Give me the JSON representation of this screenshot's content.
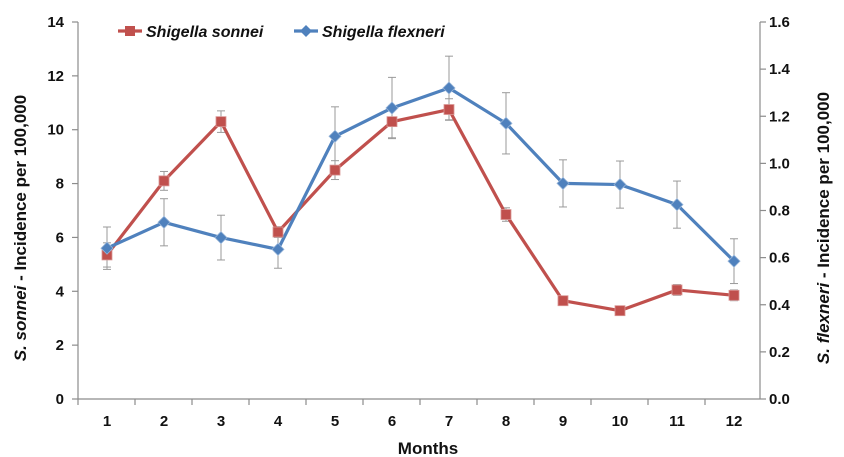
{
  "chart_data": {
    "type": "line",
    "xlabel": "Months",
    "ylabel_left_italic": "S. sonnei",
    "ylabel_left_rest": " - Incidence per 100,000",
    "ylabel_right_italic": "S. flexneri",
    "ylabel_right_rest": " - Incidence per 100,000",
    "x": [
      "1",
      "2",
      "3",
      "4",
      "5",
      "6",
      "7",
      "8",
      "9",
      "10",
      "11",
      "12"
    ],
    "ylim_left": [
      0,
      14
    ],
    "yticks_left": [
      "0",
      "2",
      "4",
      "6",
      "8",
      "10",
      "12",
      "14"
    ],
    "ylim_right": [
      0,
      1.6
    ],
    "yticks_right": [
      "0.0",
      "0.2",
      "0.4",
      "0.6",
      "0.8",
      "1.0",
      "1.2",
      "1.4",
      "1.6"
    ],
    "legend_position": "top-left",
    "grid": false,
    "series": [
      {
        "name": "Shigella sonnei",
        "axis": "left",
        "color": "#c0504d",
        "marker": "square",
        "values": [
          5.35,
          8.1,
          10.3,
          6.2,
          8.5,
          10.3,
          10.75,
          6.85,
          3.65,
          3.28,
          4.05,
          3.85
        ],
        "error": [
          0.45,
          0.35,
          0.4,
          0.2,
          0.35,
          0.6,
          0.4,
          0.25,
          0.15,
          0.15,
          0.2,
          0.2
        ]
      },
      {
        "name": "Shigella flexneri",
        "axis": "right",
        "color": "#4f81bd",
        "marker": "diamond",
        "values": [
          0.64,
          0.75,
          0.685,
          0.635,
          1.115,
          1.235,
          1.32,
          1.17,
          0.915,
          0.91,
          0.825,
          0.585
        ],
        "error": [
          0.09,
          0.1,
          0.095,
          0.08,
          0.125,
          0.13,
          0.135,
          0.13,
          0.1,
          0.1,
          0.1,
          0.095
        ]
      }
    ]
  }
}
